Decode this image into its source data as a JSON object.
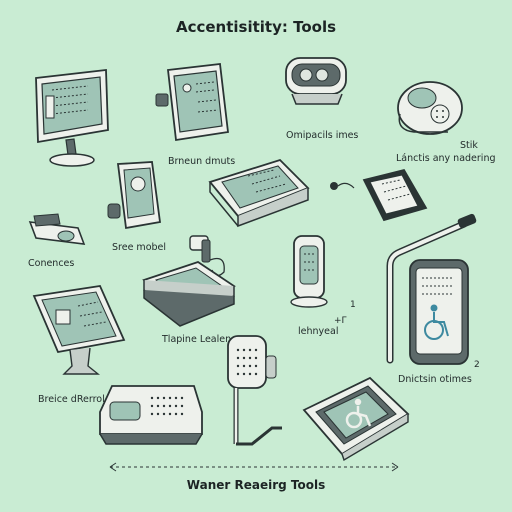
{
  "page": {
    "title": "Accentisitity: Tools",
    "footer": "Waner Reaeirg Tools"
  },
  "labels": {
    "browser_tools": "Brneun dmuts",
    "omni_items": "Omipacils imes",
    "stick": "Stik",
    "adjust_reading": "Lánctis any nadering",
    "connectors": "Conences",
    "screen_model": "Sree mobel",
    "tablet_reader": "Tlapine Lealen",
    "handheld": "lehnyeal",
    "braille_display": "Breice dRerrol",
    "distinct_options": "Dnictsin otimes"
  },
  "marks": {
    "one": "1",
    "plus_f": "+Γ",
    "two": "2"
  },
  "colors": {
    "background": "#c9ecd3",
    "device_body": "#eef1ec",
    "screen": "#9fc4b6",
    "outline": "#2a3434",
    "accent_dark": "#5d6a6a"
  },
  "icons": [
    "desktop-monitor-icon",
    "tablet-on-stand-icon",
    "smart-speaker-icon",
    "round-speaker-icon",
    "key-fob-icon",
    "handheld-phone-icon",
    "flat-tablet-device-icon",
    "e-reader-icon",
    "earbud-icon",
    "stacked-tablets-icon",
    "vertical-handheld-icon",
    "cane-stick-icon",
    "wheelchair-tablet-icon",
    "touchscreen-kiosk-icon",
    "braille-keyboard-icon",
    "microphone-stand-icon",
    "wheelchair-screen-tablet-icon",
    "dashed-arrow-icon"
  ]
}
